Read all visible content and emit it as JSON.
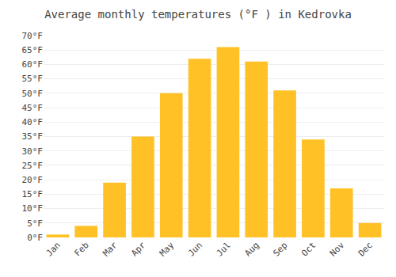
{
  "chart_data": {
    "type": "bar",
    "title": "Average monthly temperatures (°F ) in Kedrovka",
    "categories": [
      "Jan",
      "Feb",
      "Mar",
      "Apr",
      "May",
      "Jun",
      "Jul",
      "Aug",
      "Sep",
      "Oct",
      "Nov",
      "Dec"
    ],
    "values": [
      1,
      4,
      19,
      35,
      50,
      62,
      66,
      61,
      51,
      34,
      17,
      5
    ],
    "color": "#FFC125",
    "ylim": [
      0,
      70
    ],
    "yticks": [
      {
        "value": 0,
        "label": "0°F"
      },
      {
        "value": 5,
        "label": "5°F"
      },
      {
        "value": 10,
        "label": "10°F"
      },
      {
        "value": 15,
        "label": "15°F"
      },
      {
        "value": 20,
        "label": "20°F"
      },
      {
        "value": 25,
        "label": "25°F"
      },
      {
        "value": 30,
        "label": "30°F"
      },
      {
        "value": 35,
        "label": "35°F"
      },
      {
        "value": 40,
        "label": "40°F"
      },
      {
        "value": 45,
        "label": "45°F"
      },
      {
        "value": 50,
        "label": "50°F"
      },
      {
        "value": 55,
        "label": "55°F"
      },
      {
        "value": 60,
        "label": "60°F"
      },
      {
        "value": 65,
        "label": "65°F"
      },
      {
        "value": 70,
        "label": "70°F"
      }
    ],
    "grid": true
  }
}
